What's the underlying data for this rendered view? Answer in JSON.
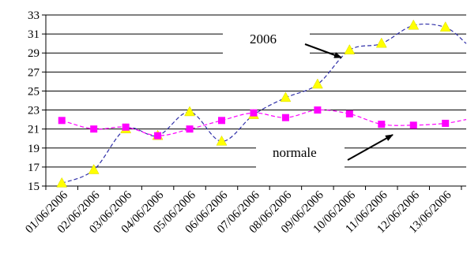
{
  "chart_data": {
    "type": "line",
    "categories": [
      "01/06/2006",
      "02/06/2006",
      "03/06/2006",
      "04/06/2006",
      "05/06/2006",
      "06/06/2006",
      "07/06/2006",
      "08/06/2006",
      "09/06/2006",
      "10/06/2006",
      "11/06/2006",
      "12/06/2006",
      "13/06/2006"
    ],
    "yticks": [
      "15",
      "17",
      "19",
      "21",
      "23",
      "25",
      "27",
      "29",
      "31",
      "33"
    ],
    "ylim": [
      15,
      33
    ],
    "grid": true,
    "series": [
      {
        "name": "2006",
        "color": "#2f2fa8",
        "marker_color": "#ffff00",
        "marker": "triangle",
        "values": [
          15.3,
          16.7,
          21.0,
          20.3,
          22.8,
          19.7,
          22.5,
          24.3,
          25.7,
          29.3,
          30.0,
          31.9,
          31.7
        ],
        "end_value": 30.0
      },
      {
        "name": "normale",
        "color": "#ff00ff",
        "marker_color": "#ff00ff",
        "marker": "square",
        "values": [
          21.9,
          21.0,
          21.2,
          20.3,
          21.0,
          21.9,
          22.7,
          22.2,
          23.0,
          22.6,
          21.5,
          21.4,
          21.6
        ],
        "end_value": 22.0
      }
    ],
    "annotations": [
      {
        "text": "2006",
        "series": "2006"
      },
      {
        "text": "normale",
        "series": "normale"
      }
    ]
  }
}
